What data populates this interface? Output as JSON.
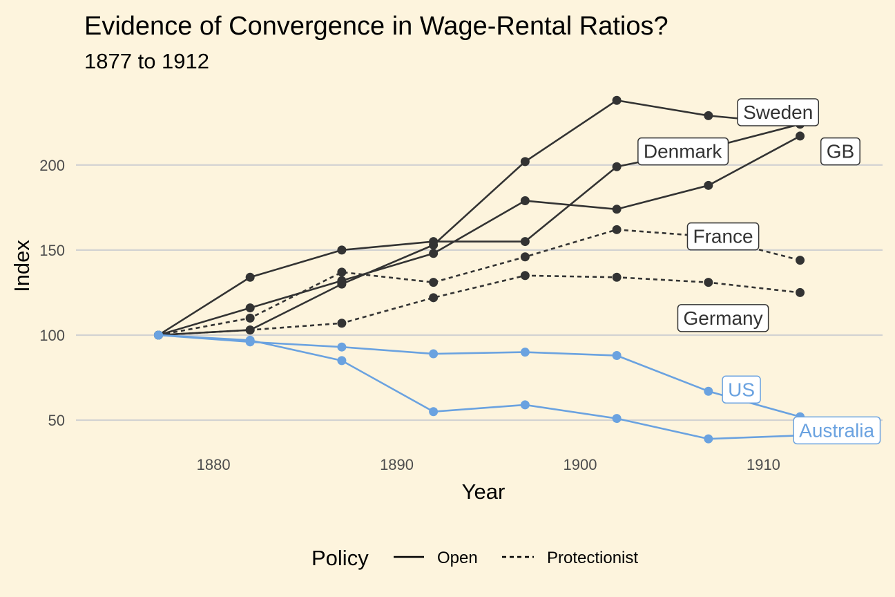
{
  "chart_data": {
    "type": "line",
    "title": "Evidence of Convergence in Wage-Rental Ratios?",
    "subtitle": "1877 to 1912",
    "xlabel": "Year",
    "ylabel": "Index",
    "xlim": [
      1872.5,
      1916.5
    ],
    "ylim": [
      35,
      245
    ],
    "xticks": [
      1880,
      1890,
      1900,
      1910
    ],
    "yticks": [
      50,
      100,
      150,
      200
    ],
    "grid": "horizontal major only",
    "legend": {
      "title": "Policy",
      "position": "bottom",
      "entries": [
        {
          "label": "Open",
          "dash": "solid"
        },
        {
          "label": "Protectionist",
          "dash": "dashed"
        }
      ]
    },
    "colors": {
      "dark": "#333333",
      "blue": "#6aa2e0",
      "background": "#fdf4dd",
      "grid": "#d2d2d2"
    },
    "x": [
      1877,
      1882,
      1887,
      1892,
      1897,
      1902,
      1907,
      1912
    ],
    "series": [
      {
        "name": "Sweden",
        "policy": "Open",
        "color": "#333333",
        "values": [
          100,
          103,
          130,
          153,
          202,
          238,
          229,
          224
        ]
      },
      {
        "name": "Denmark",
        "policy": "Open",
        "color": "#333333",
        "values": [
          100,
          134,
          150,
          155,
          155,
          199,
          210,
          224
        ]
      },
      {
        "name": "GB",
        "policy": "Open",
        "color": "#333333",
        "values": [
          100,
          116,
          132,
          148,
          179,
          174,
          188,
          217
        ]
      },
      {
        "name": "France",
        "policy": "Protectionist",
        "color": "#333333",
        "values": [
          100,
          110,
          137,
          131,
          146,
          162,
          158,
          144
        ]
      },
      {
        "name": "Germany",
        "policy": "Protectionist",
        "color": "#333333",
        "values": [
          100,
          103,
          107,
          122,
          135,
          134,
          131,
          125
        ]
      },
      {
        "name": "US",
        "policy": "Open",
        "color": "#6aa2e0",
        "values": [
          100,
          96,
          93,
          89,
          90,
          88,
          67,
          52
        ]
      },
      {
        "name": "Australia",
        "policy": "Open",
        "color": "#6aa2e0",
        "values": [
          100,
          97,
          85,
          55,
          59,
          51,
          39,
          41
        ]
      }
    ],
    "labels": [
      {
        "text": "Sweden",
        "x": 1910.8,
        "y": 231,
        "color": "#333333"
      },
      {
        "text": "Denmark",
        "x": 1905.6,
        "y": 208,
        "color": "#333333"
      },
      {
        "text": "GB",
        "x": 1914.2,
        "y": 208,
        "color": "#333333"
      },
      {
        "text": "France",
        "x": 1907.8,
        "y": 158,
        "color": "#333333"
      },
      {
        "text": "Germany",
        "x": 1907.8,
        "y": 110,
        "color": "#333333"
      },
      {
        "text": "US",
        "x": 1908.8,
        "y": 68,
        "color": "#6aa2e0"
      },
      {
        "text": "Australia",
        "x": 1914.0,
        "y": 44,
        "color": "#6aa2e0"
      }
    ]
  }
}
